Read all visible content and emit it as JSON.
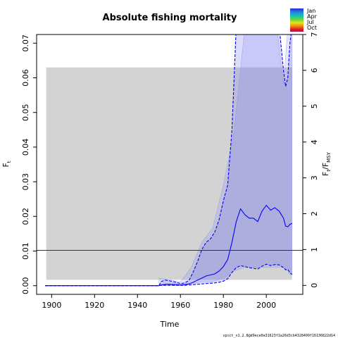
{
  "chart_data": {
    "type": "line",
    "title": "Absolute fishing mortality",
    "xlabel": "Time",
    "ylabel": "F",
    "ylabel_sub": "t",
    "y2label_main": "F",
    "y2label_sub1": "t",
    "y2label_mid": "/F",
    "y2label_sub2": "MSY",
    "xlim": [
      1893,
      2017
    ],
    "ylim": [
      -0.0025,
      0.0725
    ],
    "y2lim": [
      -0.25,
      7.0
    ],
    "x_ticks": [
      "1900",
      "1920",
      "1940",
      "1960",
      "1980",
      "2000"
    ],
    "x_tick_values": [
      1900,
      1920,
      1940,
      1960,
      1980,
      2000
    ],
    "y_ticks": [
      "0.00",
      "0.01",
      "0.02",
      "0.03",
      "0.04",
      "0.05",
      "0.06",
      "0.07"
    ],
    "y_tick_values": [
      0,
      0.01,
      0.02,
      0.03,
      0.04,
      0.05,
      0.06,
      0.07
    ],
    "y2_ticks": [
      "0",
      "1",
      "2",
      "3",
      "4",
      "5",
      "6",
      "7"
    ],
    "y2_tick_values": [
      0,
      1,
      2,
      3,
      4,
      5,
      6,
      7
    ],
    "fmsy_band": {
      "x": [
        1897.5,
        2012
      ],
      "y": [
        0.0017,
        0.063
      ]
    },
    "fmsy_line": 0.0102,
    "ratio_x": [
      1950,
      1955,
      1960,
      1965,
      1970,
      1975,
      1980,
      1985,
      1990,
      1995,
      2000,
      2005,
      2008,
      2010,
      2011,
      2012
    ],
    "ratio_lo": [
      0.0,
      0.0,
      0.0,
      0.05,
      0.1,
      0.1,
      0.2,
      0.4,
      0.5,
      0.5,
      0.5,
      0.5,
      0.5,
      0.4,
      0.3,
      0.3
    ],
    "ratio_hi": [
      0.2,
      0.15,
      0.1,
      0.5,
      1.2,
      1.6,
      2.8,
      4.3,
      7.2,
      7.2,
      7.2,
      7.2,
      5.6,
      7.2,
      7.2,
      7.2
    ],
    "series_x": [
      1897,
      1920,
      1940,
      1950,
      1951,
      1953,
      1955,
      1958,
      1960,
      1962,
      1964,
      1966,
      1968,
      1970,
      1972,
      1974,
      1976,
      1978,
      1980,
      1982,
      1984,
      1986,
      1988,
      1990,
      1992,
      1994,
      1996,
      1998,
      2000,
      2002,
      2004,
      2006,
      2008,
      2009,
      2010,
      2011,
      2012
    ],
    "series": [
      {
        "values": [
          0,
          0,
          0,
          0,
          0.0002,
          0.0004,
          0.0004,
          0.0003,
          0.0002,
          0.0003,
          0.0005,
          0.001,
          0.0016,
          0.0022,
          0.0028,
          0.0031,
          0.0034,
          0.0042,
          0.0055,
          0.0075,
          0.0125,
          0.0185,
          0.0222,
          0.0205,
          0.0195,
          0.0195,
          0.0185,
          0.0215,
          0.0232,
          0.0218,
          0.0225,
          0.0215,
          0.0195,
          0.0172,
          0.017,
          0.0177,
          0.018
        ]
      },
      {
        "values": [
          0,
          0,
          0,
          0,
          0.0001,
          0.0001,
          0.0001,
          0.0001,
          0.0001,
          0.0001,
          0.0002,
          0.0003,
          0.0004,
          0.0005,
          0.0006,
          0.0007,
          0.0008,
          0.001,
          0.0013,
          0.002,
          0.0038,
          0.0052,
          0.0058,
          0.0055,
          0.0052,
          0.005,
          0.0048,
          0.0056,
          0.0062,
          0.0058,
          0.0061,
          0.006,
          0.0052,
          0.0046,
          0.0047,
          0.0038,
          0.0032
        ]
      },
      {
        "values": [
          0,
          0,
          0,
          0,
          0.0012,
          0.0016,
          0.0014,
          0.001,
          0.0006,
          0.0008,
          0.0015,
          0.004,
          0.007,
          0.0105,
          0.0125,
          0.0135,
          0.0155,
          0.019,
          0.0245,
          0.029,
          0.045,
          0.075,
          0.075,
          0.075,
          0.075,
          0.075,
          0.075,
          0.075,
          0.075,
          0.075,
          0.075,
          0.075,
          0.062,
          0.0575,
          0.06,
          0.07,
          0.075
        ]
      }
    ],
    "legend_months": [
      "Jan",
      "Apr",
      "Jul",
      "Oct"
    ],
    "footer": "spict_v1.2.8@d9ece0a31623f1a26d3cb4328499f16136822d14"
  }
}
